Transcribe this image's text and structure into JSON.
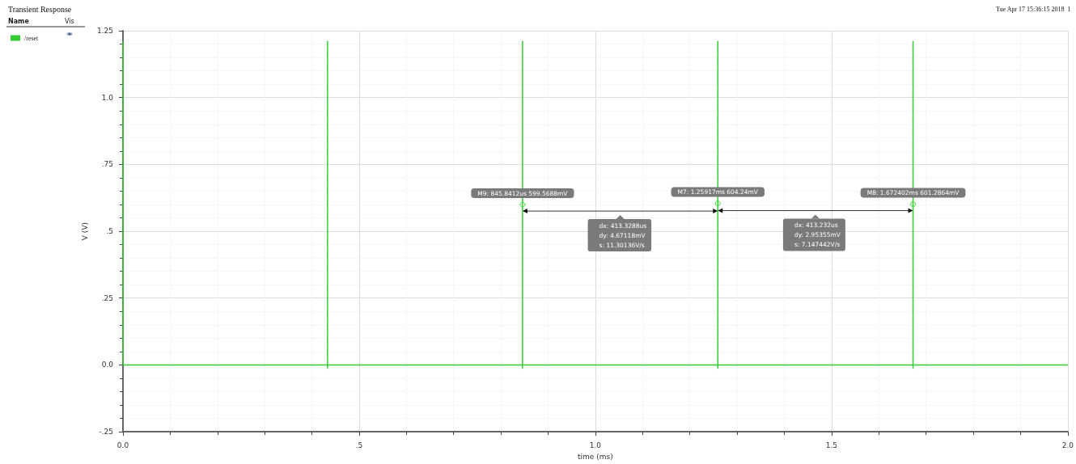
{
  "chart_data": {
    "type": "line",
    "title": "Transient Response",
    "xlabel": "time (ms)",
    "ylabel": "V (V)",
    "legend_title": "Name",
    "x": [
      0,
      0,
      0.433,
      0.433,
      0.433,
      0.433,
      0.8458,
      0.8458,
      0.8458,
      0.8458,
      1.2592,
      1.2592,
      1.2592,
      1.2592,
      1.6724,
      1.6724,
      1.6724,
      1.6724,
      2.0
    ],
    "series": [
      {
        "name": "/reset",
        "color": "#33cc33",
        "values": [
          1.21,
          0,
          0,
          1.21,
          -0.012,
          0,
          0,
          1.21,
          -0.012,
          0,
          0,
          1.21,
          -0.012,
          0,
          0,
          1.21,
          -0.012,
          0,
          0
        ]
      }
    ],
    "xlim": [
      0,
      2
    ],
    "xticks": [
      {
        "value": 0,
        "label": "0.0"
      },
      {
        "value": 0.5,
        "label": ".5"
      },
      {
        "value": 1,
        "label": "1.0"
      },
      {
        "value": 1.5,
        "label": "1.5"
      },
      {
        "value": 2,
        "label": "2.0"
      }
    ],
    "ylim": [
      -0.25,
      1.25
    ],
    "yticks": [
      {
        "value": -0.25,
        "label": "-.25"
      },
      {
        "value": 0,
        "label": "0.0"
      },
      {
        "value": 0.25,
        "label": ".25"
      },
      {
        "value": 0.5,
        "label": ".5"
      },
      {
        "value": 0.75,
        "label": ".75"
      },
      {
        "value": 1,
        "label": "1.0"
      },
      1.25
    ],
    "grid": true,
    "legend": "top left",
    "marker": "none",
    "line_style": "solid",
    "annotations": [
      "Tue Apr 17 15:36:15 2018  1",
      "Vis",
      {
        "text": "M9: 845.8412us 599.5688mV",
        "x": 0.8458412,
        "y": 0.5995688
      },
      {
        "text": "M7: 1.25917ms 604.24mV",
        "x": 1.25917,
        "y": 0.60424
      },
      {
        "text": "M8: 1.672402ms 601.2864mV",
        "x": 1.672402,
        "y": 0.6012864
      },
      "dx: 413.3288us\ndy: 4.67118mV\ns: 11.30136V/s",
      "dx: 413.232us\ndy: 2.95355mV\ns: 7.147442V/s"
    ]
  }
}
